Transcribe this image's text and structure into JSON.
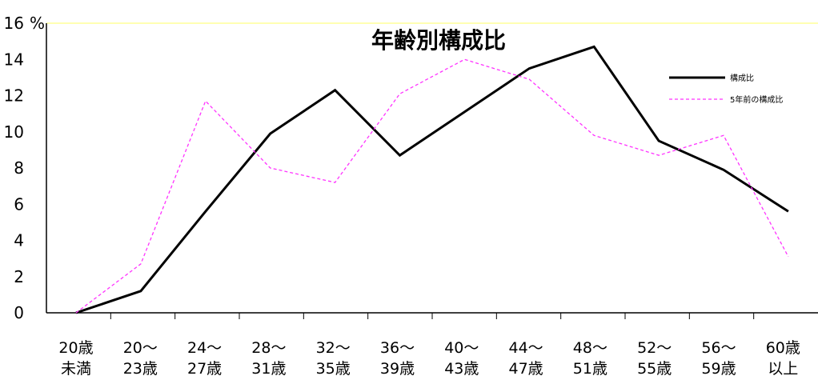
{
  "chart_data": {
    "type": "line",
    "title": "年齢別構成比",
    "ylabel": "%",
    "xlabel": "",
    "ylim": [
      0,
      16
    ],
    "yticks": [
      0,
      2,
      4,
      6,
      8,
      10,
      12,
      14,
      16
    ],
    "grid": false,
    "legend_position": "top-right",
    "categories": [
      [
        "20歳",
        "未満"
      ],
      [
        "20～",
        "23歳"
      ],
      [
        "24～",
        "27歳"
      ],
      [
        "28～",
        "31歳"
      ],
      [
        "32～",
        "35歳"
      ],
      [
        "36～",
        "39歳"
      ],
      [
        "40～",
        "43歳"
      ],
      [
        "44～",
        "47歳"
      ],
      [
        "48～",
        "51歳"
      ],
      [
        "52～",
        "55歳"
      ],
      [
        "56～",
        "59歳"
      ],
      [
        "60歳",
        "以上"
      ]
    ],
    "series": [
      {
        "name": "構成比",
        "color": "#000000",
        "style": "solid",
        "values": [
          0,
          1.2,
          5.6,
          9.9,
          12.3,
          8.7,
          11.1,
          13.5,
          14.7,
          9.5,
          7.9,
          5.6
        ]
      },
      {
        "name": "5年前の構成比",
        "color": "#ff33ff",
        "style": "dashed",
        "values": [
          0,
          2.7,
          11.7,
          8.0,
          7.2,
          12.1,
          14.0,
          12.9,
          9.8,
          8.7,
          9.8,
          3.1
        ]
      }
    ]
  }
}
